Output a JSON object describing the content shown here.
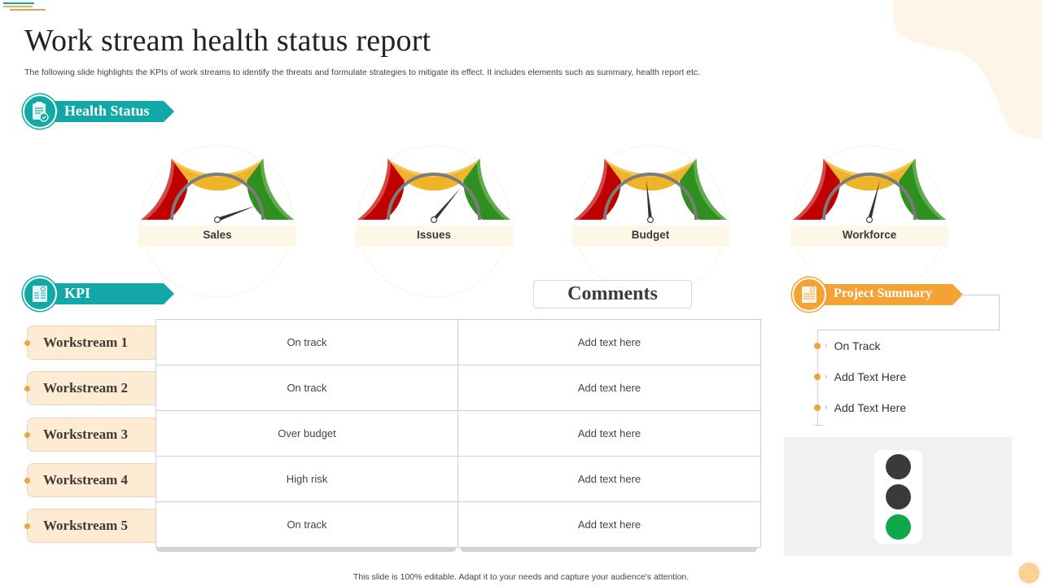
{
  "title": "Work stream health status report",
  "subtitle": "The following slide highlights the KPIs  of work streams to identify the threats and formulate strategies to mitigate its effect. It includes elements  such as summary, health report etc.",
  "colors": {
    "teal": "#12a8a8",
    "orange": "#f5a235",
    "gauge_red": "#c00000",
    "gauge_yellow": "#f0b429",
    "gauge_green": "#2f8f1f",
    "light_on": "#0ea84b",
    "light_off": "#3a3a3a"
  },
  "health_status": {
    "label": "Health Status",
    "icon": "clipboard-check-icon",
    "gauges": [
      {
        "label": "Sales",
        "needle_angle_deg": 20
      },
      {
        "label": "Issues",
        "needle_angle_deg": 50
      },
      {
        "label": "Budget",
        "needle_angle_deg": 96
      },
      {
        "label": "Workforce",
        "needle_angle_deg": 75
      }
    ]
  },
  "kpi": {
    "label": "KPI",
    "icon": "document-icon",
    "comments_header": "Comments",
    "rows": [
      {
        "workstream": "Workstream 1",
        "status": "On track",
        "comment": "Add text here"
      },
      {
        "workstream": "Workstream 2",
        "status": "On track",
        "comment": "Add text here"
      },
      {
        "workstream": "Workstream 3",
        "status": "Over  budget",
        "comment": "Add text here"
      },
      {
        "workstream": "Workstream 4",
        "status": "High risk",
        "comment": "Add text here"
      },
      {
        "workstream": "Workstream 5",
        "status": "On track",
        "comment": "Add text here"
      }
    ]
  },
  "project_summary": {
    "label": "Project Summary",
    "icon": "report-icon",
    "items": [
      "On Track",
      "Add Text Here",
      "Add Text Here"
    ],
    "traffic_light": {
      "active": "green",
      "lamps": [
        "off",
        "off",
        "green"
      ]
    }
  },
  "footer": "This slide is 100% editable.  Adapt it to your needs and capture your audience's attention."
}
